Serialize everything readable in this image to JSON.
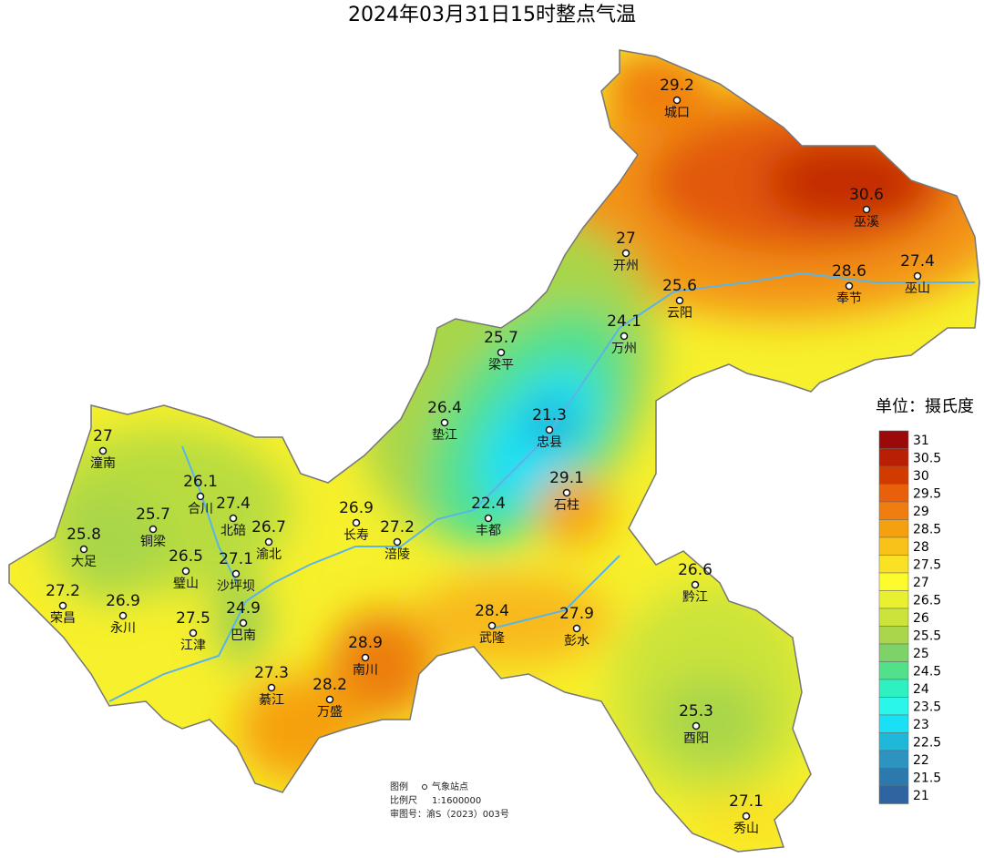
{
  "title": "2024年03月31日15时整点气温",
  "stations": [
    {
      "name": "城口",
      "value": 29.2
    },
    {
      "name": "巫溪",
      "value": 30.6
    },
    {
      "name": "开州",
      "value": 27
    },
    {
      "name": "巫山",
      "value": 27.4
    },
    {
      "name": "奉节",
      "value": 28.6
    },
    {
      "name": "云阳",
      "value": 25.6
    },
    {
      "name": "万州",
      "value": 24.1
    },
    {
      "name": "梁平",
      "value": 25.7
    },
    {
      "name": "垫江",
      "value": 26.4
    },
    {
      "name": "忠县",
      "value": 21.3
    },
    {
      "name": "潼南",
      "value": 27
    },
    {
      "name": "石柱",
      "value": 29.1
    },
    {
      "name": "合川",
      "value": 26.1
    },
    {
      "name": "丰都",
      "value": 22.4
    },
    {
      "name": "铜梁",
      "value": 25.7
    },
    {
      "name": "北碚",
      "value": 27.4
    },
    {
      "name": "长寿",
      "value": 26.9
    },
    {
      "name": "涪陵",
      "value": 27.2
    },
    {
      "name": "渝北",
      "value": 26.7
    },
    {
      "name": "大足",
      "value": 25.8
    },
    {
      "name": "璧山",
      "value": 26.5
    },
    {
      "name": "沙坪坝",
      "value": 27.1
    },
    {
      "name": "荣昌",
      "value": 27.2
    },
    {
      "name": "黔江",
      "value": 26.6
    },
    {
      "name": "永川",
      "value": 26.9
    },
    {
      "name": "巴南",
      "value": 24.9
    },
    {
      "name": "武隆",
      "value": 28.4
    },
    {
      "name": "彭水",
      "value": 27.9
    },
    {
      "name": "江津",
      "value": 27.5
    },
    {
      "name": "南川",
      "value": 28.9
    },
    {
      "name": "綦江",
      "value": 27.3
    },
    {
      "name": "万盛",
      "value": 28.2
    },
    {
      "name": "酉阳",
      "value": 25.3
    },
    {
      "name": "秀山",
      "value": 27.1
    }
  ],
  "legend": {
    "unit": "单位：摄氏度",
    "levels": [
      {
        "value": 31,
        "color": "#9b0a0a"
      },
      {
        "value": 30.5,
        "color": "#b81f05"
      },
      {
        "value": 30,
        "color": "#d13b00"
      },
      {
        "value": 29.5,
        "color": "#e8600c"
      },
      {
        "value": 29,
        "color": "#f07d10"
      },
      {
        "value": 28.5,
        "color": "#f5a010"
      },
      {
        "value": 28,
        "color": "#f8c21a"
      },
      {
        "value": 27.5,
        "color": "#fbe123"
      },
      {
        "value": 27,
        "color": "#fbfb2e"
      },
      {
        "value": 26.5,
        "color": "#e8f030"
      },
      {
        "value": 26,
        "color": "#cbe33a"
      },
      {
        "value": 25.5,
        "color": "#a9d64a"
      },
      {
        "value": 25,
        "color": "#7dd268"
      },
      {
        "value": 24.5,
        "color": "#53e08a"
      },
      {
        "value": 24,
        "color": "#2ef0c0"
      },
      {
        "value": 23.5,
        "color": "#2af6ea"
      },
      {
        "value": 23,
        "color": "#19e0f5"
      },
      {
        "value": 22.5,
        "color": "#20b8d8"
      },
      {
        "value": 22,
        "color": "#2d93c0"
      },
      {
        "value": 21.5,
        "color": "#2c7aad"
      },
      {
        "value": 21,
        "color": "#2e64a0"
      }
    ]
  },
  "footer": {
    "legend_label": "图例",
    "legend_item": "气象站点",
    "scale_label": "比例尺",
    "scale": "1:1600000",
    "approval": "审图号：渝S（2023）003号"
  }
}
